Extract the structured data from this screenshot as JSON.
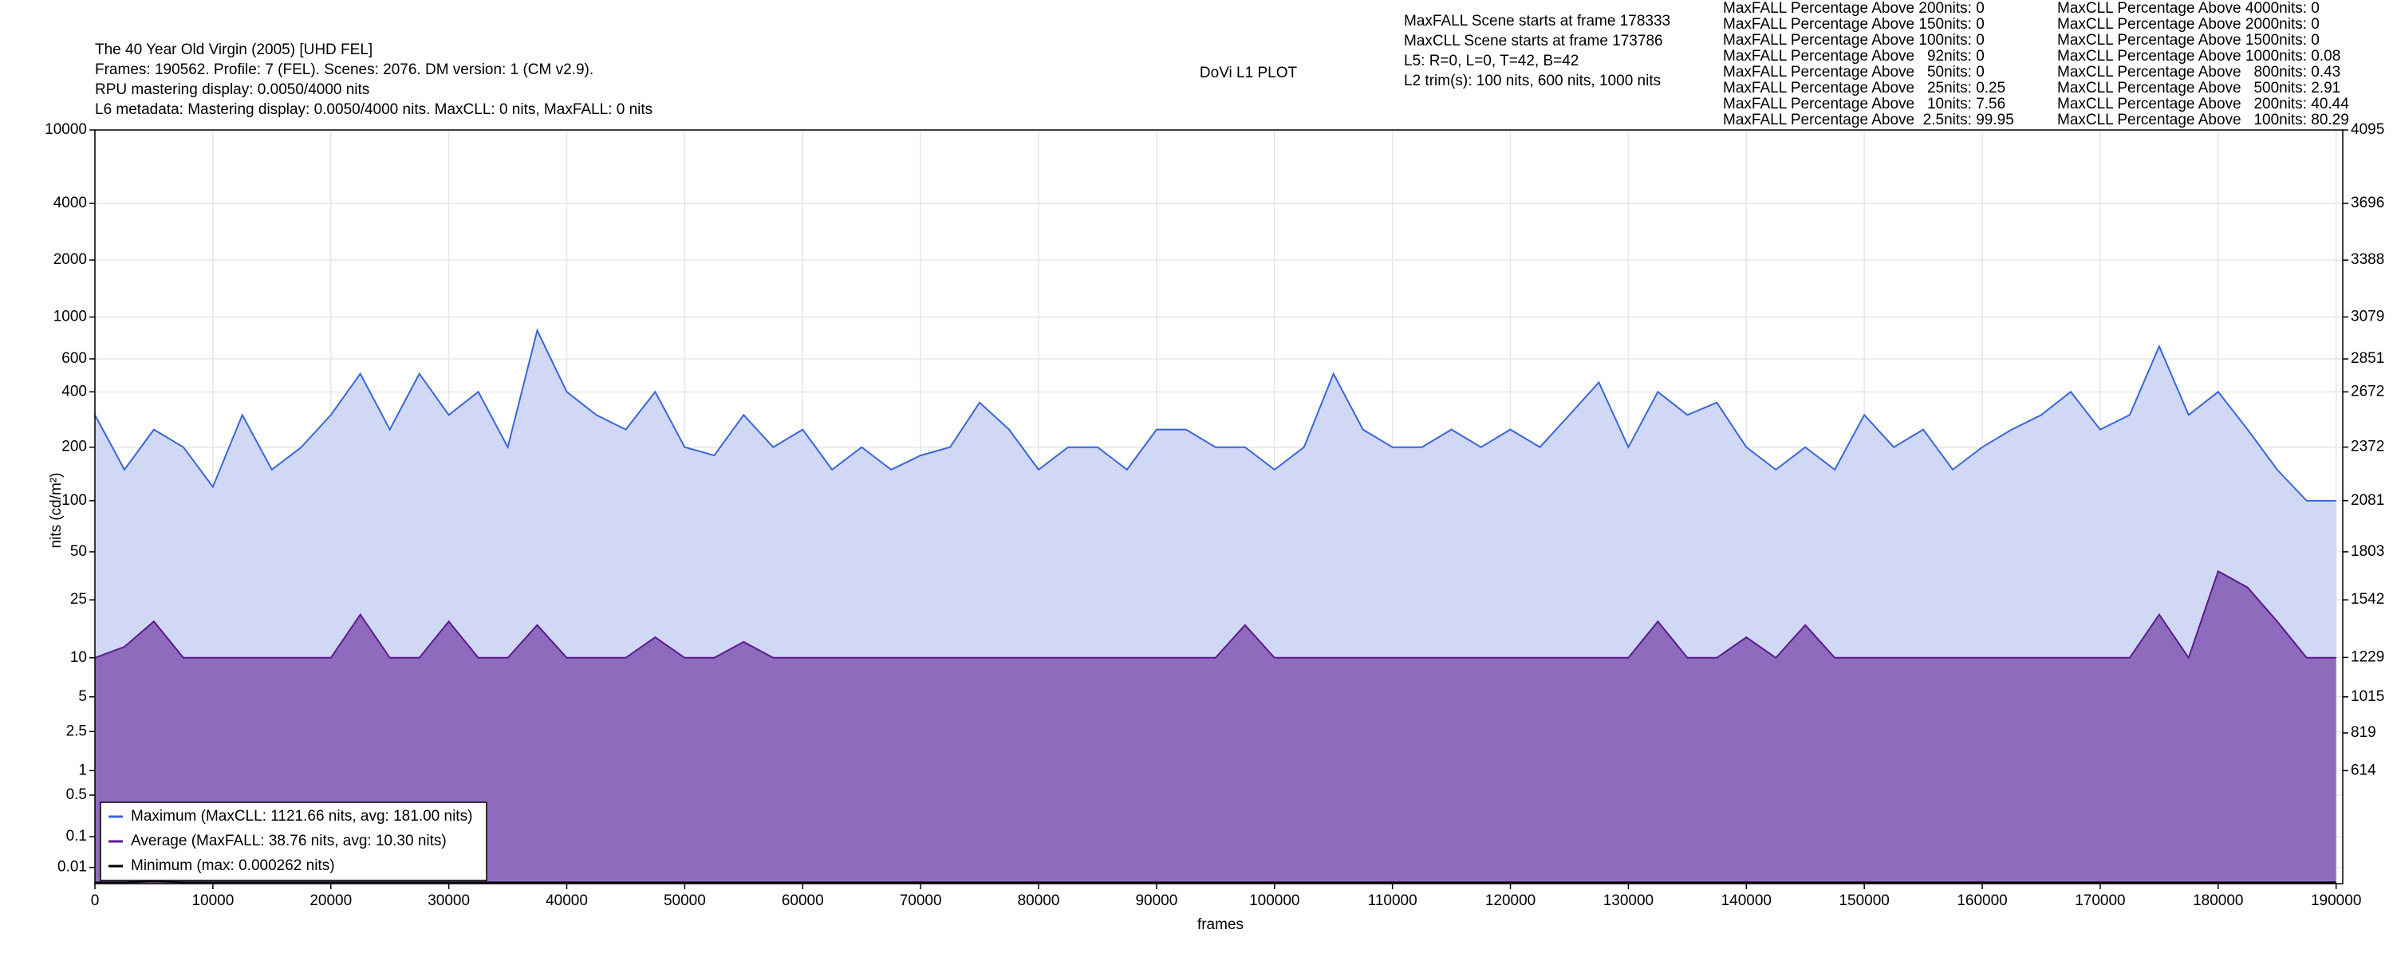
{
  "chart_data": {
    "type": "line",
    "title": "The 40 Year Old Virgin (2005) [UHD FEL]",
    "subtitle_lines": [
      "Frames: 190562. Profile: 7 (FEL). Scenes: 2076. DM version: 1 (CM v2.9).",
      "RPU mastering display: 0.0050/4000 nits",
      "L6 metadata: Mastering display: 0.0050/4000 nits. MaxCLL: 0 nits, MaxFALL: 0 nits"
    ],
    "plot_title": "DoVi L1 PLOT",
    "info_lines": [
      "MaxFALL Scene starts at frame 178333",
      "MaxCLL Scene starts at frame 173786",
      "L5: R=0, L=0, T=42, B=42",
      "L2 trim(s): 100 nits, 600 nits, 1000 nits"
    ],
    "maxfall_stats": [
      "MaxFALL Percentage Above 200nits: 0",
      "MaxFALL Percentage Above 150nits: 0",
      "MaxFALL Percentage Above 100nits: 0",
      "MaxFALL Percentage Above   92nits: 0",
      "MaxFALL Percentage Above   50nits: 0",
      "MaxFALL Percentage Above   25nits: 0.25",
      "MaxFALL Percentage Above   10nits: 7.56",
      "MaxFALL Percentage Above  2.5nits: 99.95"
    ],
    "maxcll_stats": [
      "MaxCLL Percentage Above 4000nits: 0",
      "MaxCLL Percentage Above 2000nits: 0",
      "MaxCLL Percentage Above 1500nits: 0",
      "MaxCLL Percentage Above 1000nits: 0.08",
      "MaxCLL Percentage Above   800nits: 0.43",
      "MaxCLL Percentage Above   500nits: 2.91",
      "MaxCLL Percentage Above   200nits: 40.44",
      "MaxCLL Percentage Above   100nits: 80.29"
    ],
    "x_label": "frames",
    "y_label": "nits (cd/m²)",
    "yscale": "pq",
    "grid": true,
    "legend": "lower left",
    "xlim": [
      0,
      190562
    ],
    "xticks": [
      0,
      10000,
      20000,
      30000,
      40000,
      50000,
      60000,
      70000,
      80000,
      90000,
      100000,
      110000,
      120000,
      130000,
      140000,
      150000,
      160000,
      170000,
      180000,
      190000
    ],
    "ylim": [
      0,
      10000
    ],
    "yticks": [
      0.01,
      0.1,
      0.5,
      1,
      2.5,
      5,
      10,
      25,
      50,
      100,
      200,
      400,
      600,
      1000,
      2000,
      4000,
      10000
    ],
    "y2lim": [
      0,
      4095
    ],
    "y2ticks": [
      614,
      819,
      1015,
      1229,
      1542,
      1803,
      2081,
      2372,
      2672,
      2851,
      3079,
      3388,
      3696,
      4095
    ],
    "x": [
      0,
      2500,
      5000,
      7500,
      10000,
      12500,
      15000,
      17500,
      20000,
      22500,
      25000,
      27500,
      30000,
      32500,
      35000,
      37500,
      40000,
      42500,
      45000,
      47500,
      50000,
      52500,
      55000,
      57500,
      60000,
      62500,
      65000,
      67500,
      70000,
      72500,
      75000,
      77500,
      80000,
      82500,
      85000,
      87500,
      90000,
      92500,
      95000,
      97500,
      100000,
      102500,
      105000,
      107500,
      110000,
      112500,
      115000,
      117500,
      120000,
      122500,
      125000,
      127500,
      130000,
      132500,
      135000,
      137500,
      140000,
      142500,
      145000,
      147500,
      150000,
      152500,
      155000,
      157500,
      160000,
      162500,
      165000,
      167500,
      170000,
      172500,
      175000,
      177500,
      180000,
      182500,
      185000,
      187500,
      190000
    ],
    "series": [
      {
        "name": "Maximum (MaxCLL: 1121.66 nits, avg: 181.00 nits)",
        "color": "#3a66d9",
        "fill": "#d0d8f5",
        "values": [
          300,
          150,
          250,
          200,
          120,
          300,
          150,
          200,
          300,
          500,
          250,
          500,
          300,
          400,
          200,
          850,
          400,
          300,
          250,
          400,
          200,
          180,
          300,
          200,
          250,
          150,
          200,
          150,
          180,
          200,
          350,
          250,
          150,
          200,
          200,
          150,
          250,
          250,
          200,
          200,
          150,
          200,
          500,
          250,
          200,
          200,
          250,
          200,
          250,
          200,
          300,
          450,
          200,
          400,
          300,
          350,
          200,
          150,
          200,
          150,
          300,
          200,
          250,
          150,
          200,
          250,
          300,
          400,
          250,
          300,
          700,
          300,
          400,
          250,
          150,
          100,
          100
        ]
      },
      {
        "name": "Average (MaxFALL: 38.76 nits, avg: 10.30 nits)",
        "color": "#5b1a8e",
        "fill": "#8f6bbd",
        "values": [
          10,
          12,
          18,
          10,
          10,
          10,
          10,
          10,
          10,
          20,
          10,
          10,
          18,
          10,
          10,
          17,
          10,
          10,
          10,
          14,
          10,
          10,
          13,
          10,
          10,
          10,
          10,
          10,
          10,
          10,
          10,
          10,
          10,
          10,
          10,
          10,
          10,
          10,
          10,
          17,
          10,
          10,
          10,
          10,
          10,
          10,
          10,
          10,
          10,
          10,
          10,
          10,
          10,
          18,
          10,
          10,
          14,
          10,
          17,
          10,
          10,
          10,
          10,
          10,
          10,
          10,
          10,
          10,
          10,
          10,
          20,
          10,
          38,
          30,
          18,
          10,
          10
        ]
      },
      {
        "name": "Minimum (max: 0.000262 nits)",
        "color": "#000000",
        "values": [
          0.0001,
          0.0001,
          0.000262,
          0.0001,
          0.0001,
          0.0001,
          0.0001,
          0.0001,
          0.0001,
          0.0001,
          0.0001,
          0.0001,
          0.0001,
          0.0001,
          0.0001,
          0.0001,
          0.0001,
          0.0001,
          0.0001,
          0.0001,
          0.0001,
          0.0001,
          0.0001,
          0.0001,
          0.0001,
          0.0001,
          0.0001,
          0.0001,
          0.0001,
          0.0001,
          0.0001,
          0.0001,
          0.0001,
          0.0001,
          0.0001,
          0.0001,
          0.0001,
          0.0001,
          0.0001,
          0.0001,
          0.0001,
          0.0001,
          0.0001,
          0.0001,
          0.0001,
          0.0001,
          0.0001,
          0.0001,
          0.0001,
          0.0001,
          0.0001,
          0.0001,
          0.0001,
          0.0001,
          0.0001,
          0.0001,
          0.0001,
          0.0001,
          0.0001,
          0.0001,
          0.0001,
          0.0001,
          0.0001,
          0.0001,
          0.0001,
          0.0001,
          0.0001,
          0.0001,
          0.0001,
          0.0001,
          0.0001,
          0.0001,
          0.0001,
          0.0001,
          0.0001,
          0.0001,
          0.0001
        ]
      }
    ]
  }
}
